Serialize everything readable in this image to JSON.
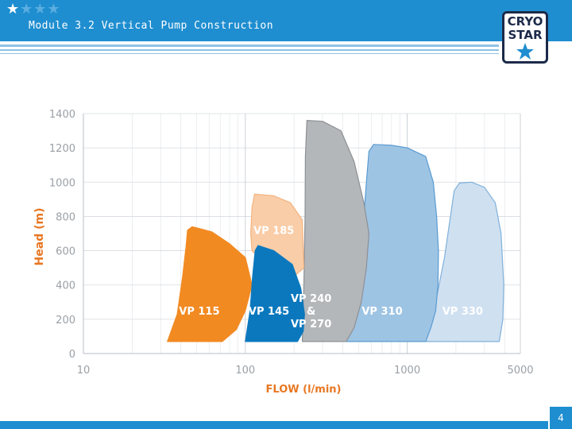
{
  "header": {
    "stars_filled": 1,
    "stars_total": 4,
    "title": "Module 3.2 Vertical Pump Construction"
  },
  "logo": {
    "line1": "CRYO",
    "line2": "STAR",
    "icon": "star-icon"
  },
  "footer": {
    "page_number": "4"
  },
  "colors": {
    "header_blue": "#1f8ed0",
    "axis_orange": "#e87722",
    "vp115": "#f28a22",
    "vp145": "#0b78be",
    "vp185": "#f9cda8",
    "vp240": "#b4b7ba",
    "vp310": "#9ec4e4",
    "vp330": "#cfe0f1"
  },
  "chart_data": {
    "type": "area",
    "xlabel": "FLOW (l/min)",
    "ylabel": "Head (m)",
    "xscale": "log",
    "xlim": [
      10,
      5000
    ],
    "ylim": [
      0,
      1400
    ],
    "xticks": [
      10,
      100,
      1000,
      5000
    ],
    "xtick_labels": [
      "10",
      "100",
      "1000",
      "5000"
    ],
    "yticks": [
      0,
      200,
      400,
      600,
      800,
      1000,
      1200,
      1400
    ],
    "ytick_labels": [
      "0",
      "200",
      "400",
      "600",
      "800",
      "1000",
      "1200",
      "1400"
    ],
    "grid": true,
    "series": [
      {
        "name": "VP 330",
        "label_lines": [
          "VP 330"
        ],
        "label_pos": [
          2200,
          250
        ],
        "label_color": "#ffffff",
        "color": "#cfe0f1",
        "stroke": "#7fb0da",
        "points": [
          [
            1300,
            70
          ],
          [
            1500,
            300
          ],
          [
            1700,
            560
          ],
          [
            1850,
            800
          ],
          [
            1950,
            950
          ],
          [
            2100,
            995
          ],
          [
            2500,
            1000
          ],
          [
            3000,
            970
          ],
          [
            3500,
            880
          ],
          [
            3800,
            700
          ],
          [
            3950,
            400
          ],
          [
            3900,
            200
          ],
          [
            3700,
            70
          ]
        ]
      },
      {
        "name": "VP 310",
        "label_lines": [
          "VP 310"
        ],
        "label_pos": [
          700,
          250
        ],
        "label_color": "#ffffff",
        "color": "#9ec4e4",
        "stroke": "#5a9bd1",
        "points": [
          [
            380,
            70
          ],
          [
            450,
            300
          ],
          [
            500,
            560
          ],
          [
            540,
            800
          ],
          [
            560,
            1000
          ],
          [
            580,
            1180
          ],
          [
            620,
            1220
          ],
          [
            800,
            1215
          ],
          [
            1000,
            1200
          ],
          [
            1300,
            1150
          ],
          [
            1450,
            1000
          ],
          [
            1520,
            800
          ],
          [
            1560,
            600
          ],
          [
            1550,
            400
          ],
          [
            1500,
            250
          ],
          [
            1400,
            150
          ],
          [
            1300,
            70
          ]
        ]
      },
      {
        "name": "VP 240 & VP 270",
        "label_lines": [
          "VP 240",
          "&",
          "VP 270"
        ],
        "label_pos": [
          255,
          250
        ],
        "label_color": "#ffffff",
        "color": "#b4b7ba",
        "stroke": "#8d9094",
        "points": [
          [
            225,
            70
          ],
          [
            230,
            400
          ],
          [
            234,
            800
          ],
          [
            235,
            1150
          ],
          [
            240,
            1360
          ],
          [
            300,
            1355
          ],
          [
            390,
            1300
          ],
          [
            470,
            1120
          ],
          [
            540,
            880
          ],
          [
            580,
            700
          ],
          [
            560,
            500
          ],
          [
            520,
            300
          ],
          [
            470,
            150
          ],
          [
            420,
            70
          ]
        ]
      },
      {
        "name": "VP 185",
        "label_lines": [
          "VP 185"
        ],
        "label_pos": [
          150,
          720
        ],
        "label_color": "#ffffff",
        "color": "#f9cda8",
        "stroke": "#f3b37f",
        "points": [
          [
            108,
            700
          ],
          [
            110,
            850
          ],
          [
            114,
            930
          ],
          [
            150,
            920
          ],
          [
            190,
            880
          ],
          [
            225,
            780
          ],
          [
            230,
            500
          ],
          [
            200,
            450
          ],
          [
            150,
            480
          ],
          [
            110,
            600
          ]
        ]
      },
      {
        "name": "VP 115",
        "label_lines": [
          "VP 115"
        ],
        "label_pos": [
          52,
          250
        ],
        "label_color": "#ffffff",
        "color": "#f28a22",
        "stroke": "#f28a22",
        "points": [
          [
            33,
            70
          ],
          [
            38,
            230
          ],
          [
            41,
            450
          ],
          [
            43,
            620
          ],
          [
            44,
            720
          ],
          [
            47,
            740
          ],
          [
            62,
            710
          ],
          [
            80,
            640
          ],
          [
            100,
            560
          ],
          [
            110,
            400
          ],
          [
            100,
            250
          ],
          [
            88,
            140
          ],
          [
            72,
            70
          ]
        ]
      },
      {
        "name": "VP 145",
        "label_lines": [
          "VP 145"
        ],
        "label_pos": [
          140,
          250
        ],
        "label_color": "#ffffff",
        "color": "#0b78be",
        "stroke": "#0b78be",
        "points": [
          [
            100,
            70
          ],
          [
            107,
            250
          ],
          [
            111,
            450
          ],
          [
            115,
            600
          ],
          [
            120,
            630
          ],
          [
            150,
            600
          ],
          [
            195,
            520
          ],
          [
            220,
            380
          ],
          [
            232,
            230
          ],
          [
            228,
            130
          ],
          [
            210,
            70
          ]
        ]
      }
    ]
  }
}
